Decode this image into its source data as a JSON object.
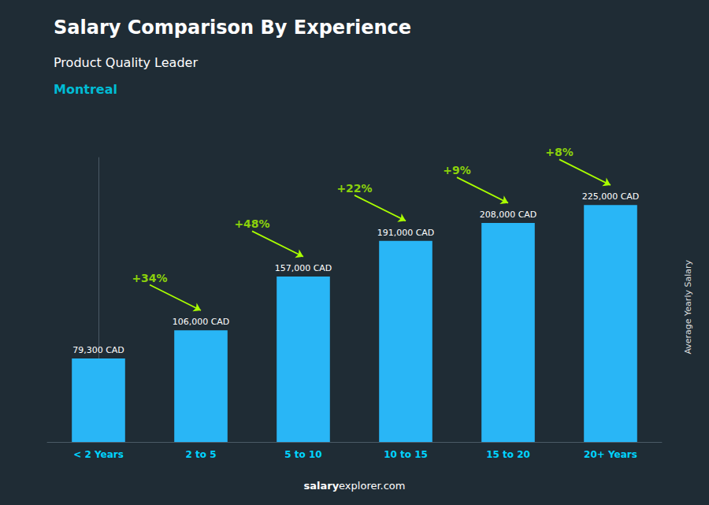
{
  "chart_data": {
    "type": "bar",
    "title": "Salary Comparison By Experience",
    "subtitle": "Product Quality Leader",
    "city": "Montreal",
    "ylabel": "Average Yearly Salary",
    "watermark": [
      "salary",
      "explorer.com"
    ],
    "categories": [
      "< 2 Years",
      "2 to 5",
      "5 to 10",
      "10 to 15",
      "15 to 20",
      "20+ Years"
    ],
    "values": [
      79300,
      106000,
      157000,
      191000,
      208000,
      225000
    ],
    "value_labels": [
      "79,300 CAD",
      "106,000 CAD",
      "157,000 CAD",
      "191,000 CAD",
      "208,000 CAD",
      "225,000 CAD"
    ],
    "data_labels": true,
    "color": "#29B6F6",
    "ylim": [
      0,
      270000
    ],
    "tick_labels": "x",
    "grid": false,
    "annotations": [
      {
        "text": "+34%",
        "from": "< 2 Years",
        "to": "2 to 5",
        "color": "#AAFF00"
      },
      {
        "text": "+48%",
        "from": "2 to 5",
        "to": "5 to 10",
        "color": "#AAFF00"
      },
      {
        "text": "+22%",
        "from": "5 to 10",
        "to": "10 to 15",
        "color": "#AAFF00"
      },
      {
        "text": "+9%",
        "from": "10 to 15",
        "to": "15 to 20",
        "color": "#AAFF00"
      },
      {
        "text": "+8%",
        "from": "15 to 20",
        "to": "20+ Years",
        "color": "#AAFF00"
      }
    ]
  }
}
